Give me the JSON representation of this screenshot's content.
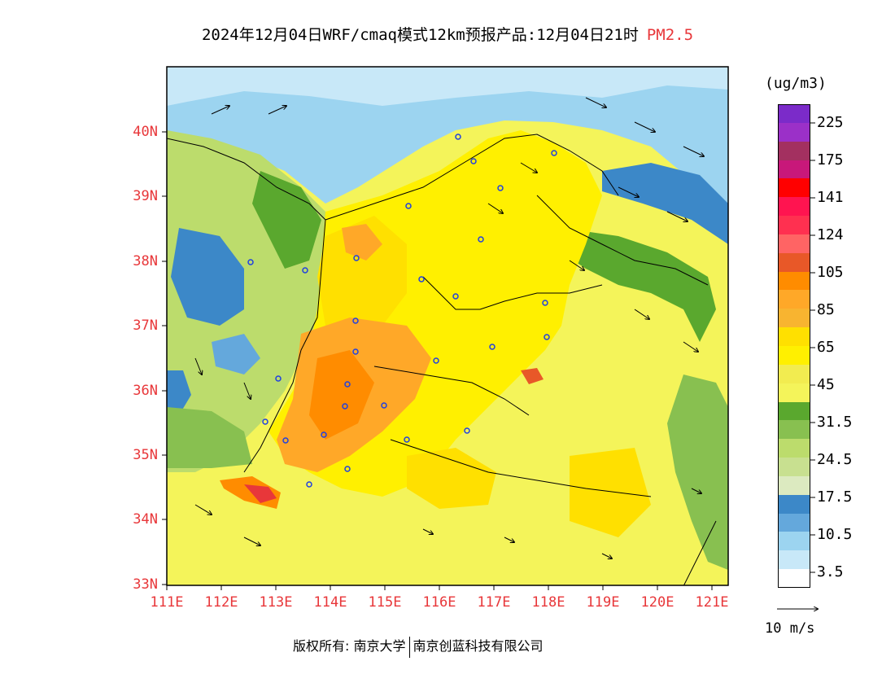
{
  "header": {
    "title": "2024年12月04日WRF/cmaq模式12km预报产品:12月04日21时",
    "pollutant": "PM2.5"
  },
  "map": {
    "lat_labels": [
      "40N",
      "39N",
      "38N",
      "37N",
      "36N",
      "35N",
      "34N",
      "33N"
    ],
    "lon_labels": [
      "111E",
      "112E",
      "113E",
      "114E",
      "115E",
      "116E",
      "117E",
      "118E",
      "119E",
      "120E",
      "121E"
    ],
    "lat_range": [
      33,
      40.7
    ],
    "lon_range": [
      111,
      121.3
    ]
  },
  "legend": {
    "unit": "(ug/m3)",
    "labels": [
      "225",
      "175",
      "141",
      "124",
      "105",
      "85",
      "65",
      "45",
      "31.5",
      "24.5",
      "17.5",
      "10.5",
      "3.5"
    ],
    "colors": [
      "#7b2bc9",
      "#9b30c8",
      "#a33060",
      "#c8187a",
      "#ff0000",
      "#ff1450",
      "#ff3050",
      "#ff6464",
      "#e85828",
      "#ff8c00",
      "#ffa828",
      "#f8b430",
      "#ffe000",
      "#fff000",
      "#f2ec50",
      "#f4f45a",
      "#5aa82e",
      "#88c050",
      "#bcdc6c",
      "#c8e090",
      "#dceac0",
      "#3c88c8",
      "#64a8dc",
      "#9cd4f0",
      "#c8e8f8",
      "#ffffff"
    ]
  },
  "wind_scale": {
    "label": "10 m/s"
  },
  "footer": {
    "copyright_label": "版权所有:",
    "org1": "南京大学",
    "org2": "南京创蓝科技有限公司"
  }
}
